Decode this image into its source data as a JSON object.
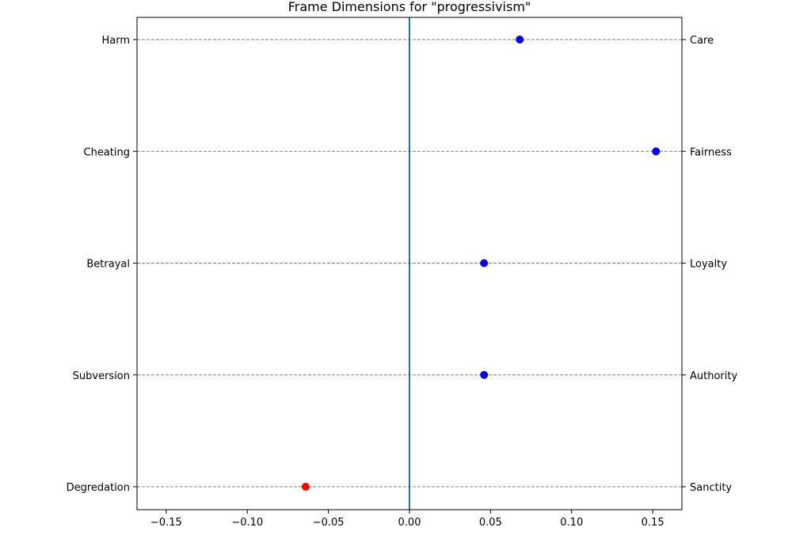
{
  "chart_data": {
    "type": "scatter",
    "title": "Frame Dimensions for \"progressivism\"",
    "xlabel": "",
    "ylabel": "",
    "xlim": [
      -0.168,
      0.168
    ],
    "xticks": [
      -0.15,
      -0.1,
      -0.05,
      0.0,
      0.05,
      0.1,
      0.15
    ],
    "xtick_labels": [
      "−0.15",
      "−0.10",
      "−0.05",
      "0.00",
      "0.05",
      "0.10",
      "0.15"
    ],
    "reference_line_x": 0.0,
    "reference_line_color": "#1f77b4",
    "grid": "horizontal dashed",
    "legend": "none",
    "points": [
      {
        "left_label": "Harm",
        "right_label": "Care",
        "value": 0.068,
        "color": "#0000ff"
      },
      {
        "left_label": "Cheating",
        "right_label": "Fairness",
        "value": 0.152,
        "color": "#0000ff"
      },
      {
        "left_label": "Betrayal",
        "right_label": "Loyalty",
        "value": 0.046,
        "color": "#0000ff"
      },
      {
        "left_label": "Subversion",
        "right_label": "Authority",
        "value": 0.046,
        "color": "#0000ff"
      },
      {
        "left_label": "Degredation",
        "right_label": "Sanctity",
        "value": -0.064,
        "color": "#ff0000"
      }
    ]
  }
}
